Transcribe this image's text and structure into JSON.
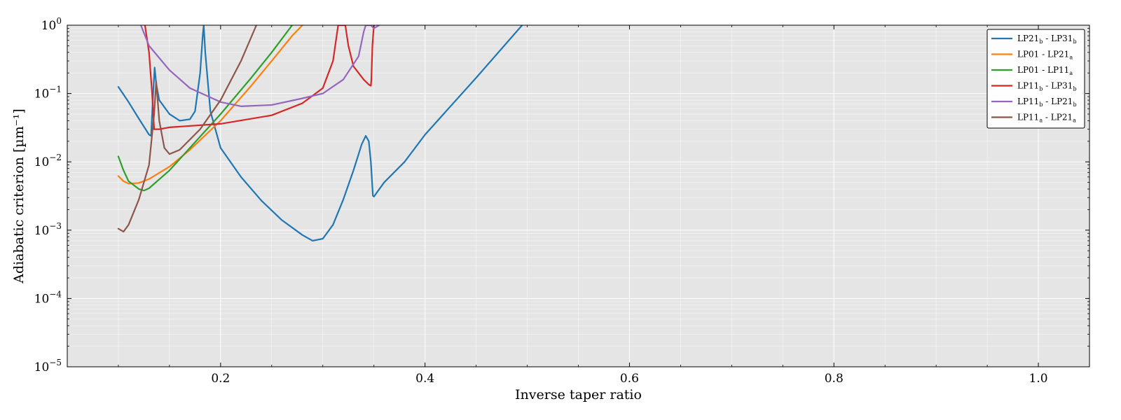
{
  "chart_data": {
    "type": "line",
    "xlabel": "Inverse taper ratio",
    "ylabel": "Adiabatic criterion [µm⁻¹]",
    "xlim": [
      0.05,
      1.05
    ],
    "ylim": [
      1e-05,
      1
    ],
    "yscale": "log",
    "grid": true,
    "legend_position": "top-right",
    "background": "#e5e5e5",
    "x_ticks": [
      {
        "value": 0.2,
        "label": "0.2"
      },
      {
        "value": 0.4,
        "label": "0.4"
      },
      {
        "value": 0.6,
        "label": "0.6"
      },
      {
        "value": 0.8,
        "label": "0.8"
      },
      {
        "value": 1.0,
        "label": "1.0"
      }
    ],
    "y_ticks": [
      {
        "value": 1e-05,
        "base": "10",
        "exp": "−5"
      },
      {
        "value": 0.0001,
        "base": "10",
        "exp": "−4"
      },
      {
        "value": 0.001,
        "base": "10",
        "exp": "−3"
      },
      {
        "value": 0.01,
        "base": "10",
        "exp": "−2"
      },
      {
        "value": 0.1,
        "base": "10",
        "exp": "−1"
      },
      {
        "value": 1,
        "base": "10",
        "exp": "0"
      }
    ],
    "series": [
      {
        "name": "LP21_b - LP31_b",
        "label": {
          "a": "LP21",
          "a_sub": "b",
          "b": "LP31",
          "b_sub": "b"
        },
        "color": "#1f77b4",
        "points": [
          [
            0.1,
            0.125
          ],
          [
            0.11,
            0.075
          ],
          [
            0.12,
            0.043
          ],
          [
            0.13,
            0.025
          ],
          [
            0.132,
            0.024
          ],
          [
            0.134,
            0.1
          ],
          [
            0.1355,
            0.24
          ],
          [
            0.137,
            0.14
          ],
          [
            0.14,
            0.08
          ],
          [
            0.15,
            0.05
          ],
          [
            0.16,
            0.04
          ],
          [
            0.17,
            0.042
          ],
          [
            0.175,
            0.055
          ],
          [
            0.18,
            0.2
          ],
          [
            0.1825,
            0.7
          ],
          [
            0.1835,
            1.0
          ],
          [
            0.185,
            0.4
          ],
          [
            0.19,
            0.055
          ],
          [
            0.2,
            0.016
          ],
          [
            0.22,
            0.006
          ],
          [
            0.24,
            0.0027
          ],
          [
            0.26,
            0.0014
          ],
          [
            0.28,
            0.00085
          ],
          [
            0.29,
            0.0007
          ],
          [
            0.3,
            0.00075
          ],
          [
            0.31,
            0.0012
          ],
          [
            0.32,
            0.0028
          ],
          [
            0.33,
            0.0075
          ],
          [
            0.338,
            0.018
          ],
          [
            0.342,
            0.024
          ],
          [
            0.345,
            0.02
          ],
          [
            0.347,
            0.01
          ],
          [
            0.349,
            0.0032
          ],
          [
            0.35,
            0.0031
          ],
          [
            0.36,
            0.005
          ],
          [
            0.38,
            0.01
          ],
          [
            0.4,
            0.025
          ],
          [
            0.45,
            0.17
          ],
          [
            0.495,
            1.0
          ]
        ]
      },
      {
        "name": "LP01 - LP21_a",
        "label": {
          "a": "LP01",
          "a_sub": "",
          "b": "LP21",
          "b_sub": "a"
        },
        "color": "#ff7f0e",
        "points": [
          [
            0.1,
            0.0062
          ],
          [
            0.105,
            0.0052
          ],
          [
            0.11,
            0.0048
          ],
          [
            0.12,
            0.0049
          ],
          [
            0.13,
            0.0056
          ],
          [
            0.15,
            0.0085
          ],
          [
            0.17,
            0.015
          ],
          [
            0.2,
            0.04
          ],
          [
            0.23,
            0.13
          ],
          [
            0.25,
            0.3
          ],
          [
            0.27,
            0.7
          ],
          [
            0.28,
            1.0
          ]
        ]
      },
      {
        "name": "LP01 - LP11_a",
        "label": {
          "a": "LP01",
          "a_sub": "",
          "b": "LP11",
          "b_sub": "a"
        },
        "color": "#2ca02c",
        "points": [
          [
            0.1,
            0.012
          ],
          [
            0.105,
            0.0075
          ],
          [
            0.11,
            0.0052
          ],
          [
            0.12,
            0.004
          ],
          [
            0.125,
            0.0038
          ],
          [
            0.13,
            0.0041
          ],
          [
            0.15,
            0.0075
          ],
          [
            0.17,
            0.016
          ],
          [
            0.2,
            0.05
          ],
          [
            0.23,
            0.17
          ],
          [
            0.25,
            0.4
          ],
          [
            0.27,
            1.0
          ]
        ]
      },
      {
        "name": "LP11_b - LP31_b",
        "label": {
          "a": "LP11",
          "a_sub": "b",
          "b": "LP31",
          "b_sub": "b"
        },
        "color": "#d62728",
        "points": [
          [
            0.126,
            1.0
          ],
          [
            0.13,
            0.4
          ],
          [
            0.133,
            0.1
          ],
          [
            0.135,
            0.03
          ],
          [
            0.14,
            0.03
          ],
          [
            0.15,
            0.032
          ],
          [
            0.2,
            0.036
          ],
          [
            0.25,
            0.048
          ],
          [
            0.28,
            0.072
          ],
          [
            0.3,
            0.12
          ],
          [
            0.31,
            0.3
          ],
          [
            0.315,
            1.0
          ],
          [
            0.322,
            1.0
          ],
          [
            0.325,
            0.5
          ],
          [
            0.33,
            0.25
          ],
          [
            0.34,
            0.16
          ],
          [
            0.345,
            0.135
          ],
          [
            0.347,
            0.13
          ],
          [
            0.3475,
            0.16
          ],
          [
            0.3485,
            0.5
          ],
          [
            0.35,
            1.0
          ]
        ]
      },
      {
        "name": "LP11_b - LP21_b",
        "label": {
          "a": "LP11",
          "a_sub": "b",
          "b": "LP21",
          "b_sub": "b"
        },
        "color": "#9467bd",
        "points": [
          [
            0.122,
            1.0
          ],
          [
            0.13,
            0.5
          ],
          [
            0.15,
            0.22
          ],
          [
            0.17,
            0.12
          ],
          [
            0.2,
            0.075
          ],
          [
            0.22,
            0.065
          ],
          [
            0.25,
            0.068
          ],
          [
            0.28,
            0.085
          ],
          [
            0.3,
            0.1
          ],
          [
            0.32,
            0.16
          ],
          [
            0.335,
            0.35
          ],
          [
            0.34,
            0.8
          ],
          [
            0.342,
            1.0
          ],
          [
            0.347,
            1.0
          ],
          [
            0.35,
            0.9
          ],
          [
            0.355,
            1.0
          ]
        ]
      },
      {
        "name": "LP11_a - LP21_a",
        "label": {
          "a": "LP11",
          "a_sub": "a",
          "b": "LP21",
          "b_sub": "a"
        },
        "color": "#8c564b",
        "points": [
          [
            0.1,
            0.00105
          ],
          [
            0.105,
            0.00095
          ],
          [
            0.11,
            0.0012
          ],
          [
            0.12,
            0.0028
          ],
          [
            0.13,
            0.009
          ],
          [
            0.135,
            0.05
          ],
          [
            0.137,
            0.15
          ],
          [
            0.14,
            0.04
          ],
          [
            0.145,
            0.016
          ],
          [
            0.15,
            0.013
          ],
          [
            0.16,
            0.015
          ],
          [
            0.18,
            0.03
          ],
          [
            0.2,
            0.08
          ],
          [
            0.22,
            0.3
          ],
          [
            0.235,
            1.0
          ]
        ]
      }
    ]
  }
}
